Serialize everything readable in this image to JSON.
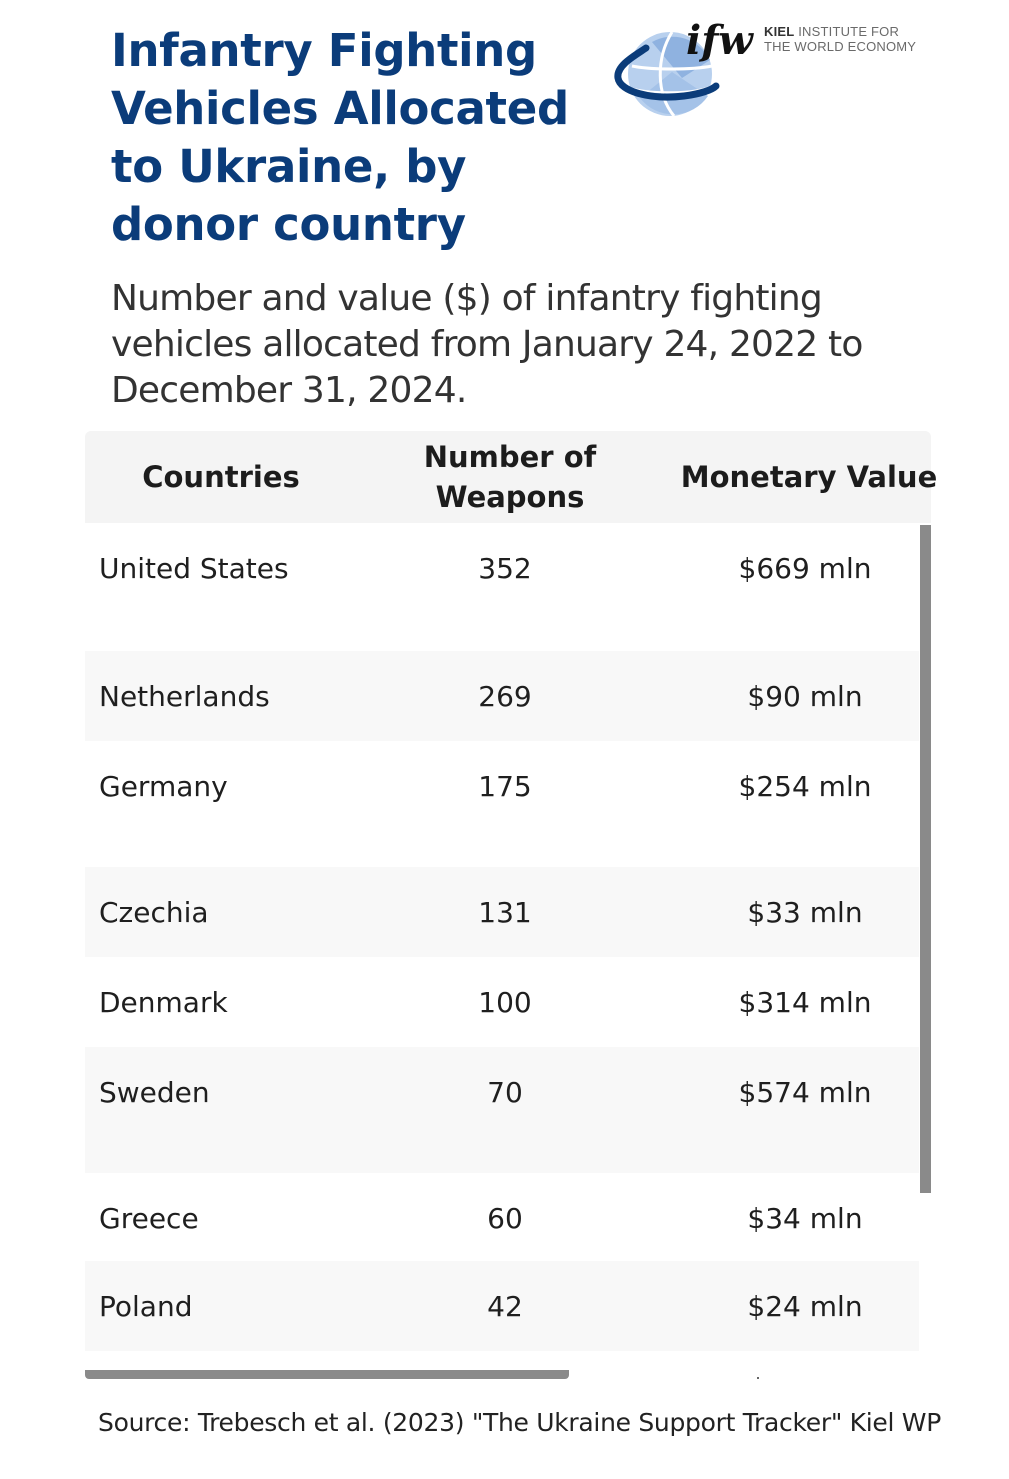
{
  "header": {
    "title": "Infantry Fighting Vehicles Allocated to Ukraine, by donor country",
    "subtitle": "Number and value ($) of infantry fighting vehicles allocated from January 24, 2022 to December 31, 2024."
  },
  "logo": {
    "mark": "ifw",
    "line1_bold": "KIEL",
    "line1_rest": "INSTITUTE FOR",
    "line2": "THE WORLD ECONOMY",
    "icon": "globe-icon"
  },
  "table": {
    "columns": [
      "Countries",
      "Number of Weapons",
      "Monetary Value"
    ],
    "rows": [
      {
        "country": "United States",
        "weapons": "352",
        "value": "$669 mln"
      },
      {
        "country": "Netherlands",
        "weapons": "269",
        "value": "$90 mln"
      },
      {
        "country": "Germany",
        "weapons": "175",
        "value": "$254 mln"
      },
      {
        "country": "Czechia",
        "weapons": "131",
        "value": "$33 mln"
      },
      {
        "country": "Denmark",
        "weapons": "100",
        "value": "$314 mln"
      },
      {
        "country": "Sweden",
        "weapons": "70",
        "value": "$574 mln"
      },
      {
        "country": "Greece",
        "weapons": "60",
        "value": "$34 mln"
      },
      {
        "country": "Poland",
        "weapons": "42",
        "value": "$24 mln"
      }
    ]
  },
  "footer": {
    "source": "Source: Trebesch et al. (2023) \"The Ukraine Support Tracker\" Kiel WP"
  },
  "colors": {
    "title": "#0b3c7a",
    "header_bg": "#f4f4f4",
    "row_alt_bg": "#f8f8f8",
    "scrollbar": "#8a8a8a"
  }
}
